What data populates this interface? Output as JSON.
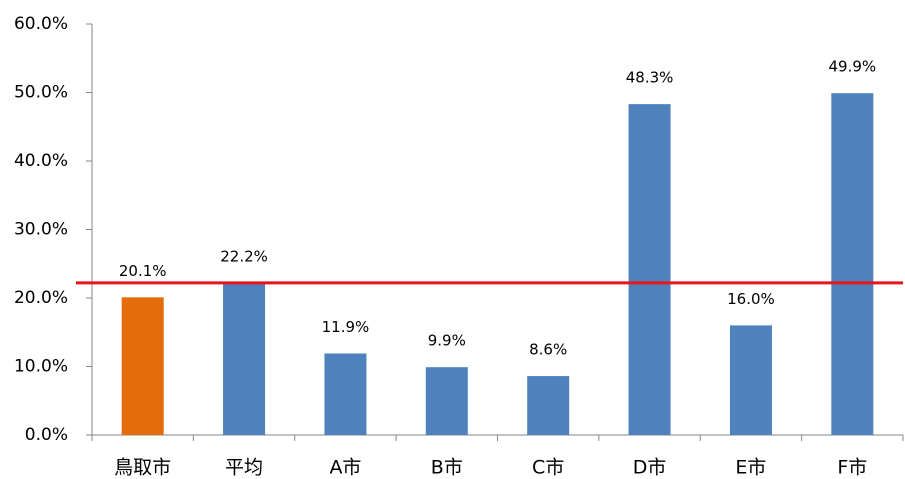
{
  "chart_data": {
    "type": "bar",
    "categories": [
      "鳥取市",
      "平均",
      "A市",
      "B市",
      "C市",
      "D市",
      "E市",
      "F市"
    ],
    "values": [
      20.1,
      22.2,
      11.9,
      9.9,
      8.6,
      48.3,
      16.0,
      49.9
    ],
    "value_labels": [
      "20.1%",
      "22.2%",
      "11.9%",
      "9.9%",
      "8.6%",
      "48.3%",
      "16.0%",
      "49.9%"
    ],
    "colors": [
      "#e46c0a",
      "#4f81bd",
      "#4f81bd",
      "#4f81bd",
      "#4f81bd",
      "#4f81bd",
      "#4f81bd",
      "#4f81bd"
    ],
    "reference_line": {
      "value": 22.2,
      "color": "#e8141c"
    },
    "ylim": [
      0,
      60
    ],
    "yticks": [
      {
        "value": 0,
        "label": "0.0%"
      },
      {
        "value": 10,
        "label": "10.0%"
      },
      {
        "value": 20,
        "label": "20.0%"
      },
      {
        "value": 30,
        "label": "30.0%"
      },
      {
        "value": 40,
        "label": "40.0%"
      },
      {
        "value": 50,
        "label": "50.0%"
      },
      {
        "value": 60,
        "label": "60.0%"
      }
    ],
    "grid": false
  }
}
